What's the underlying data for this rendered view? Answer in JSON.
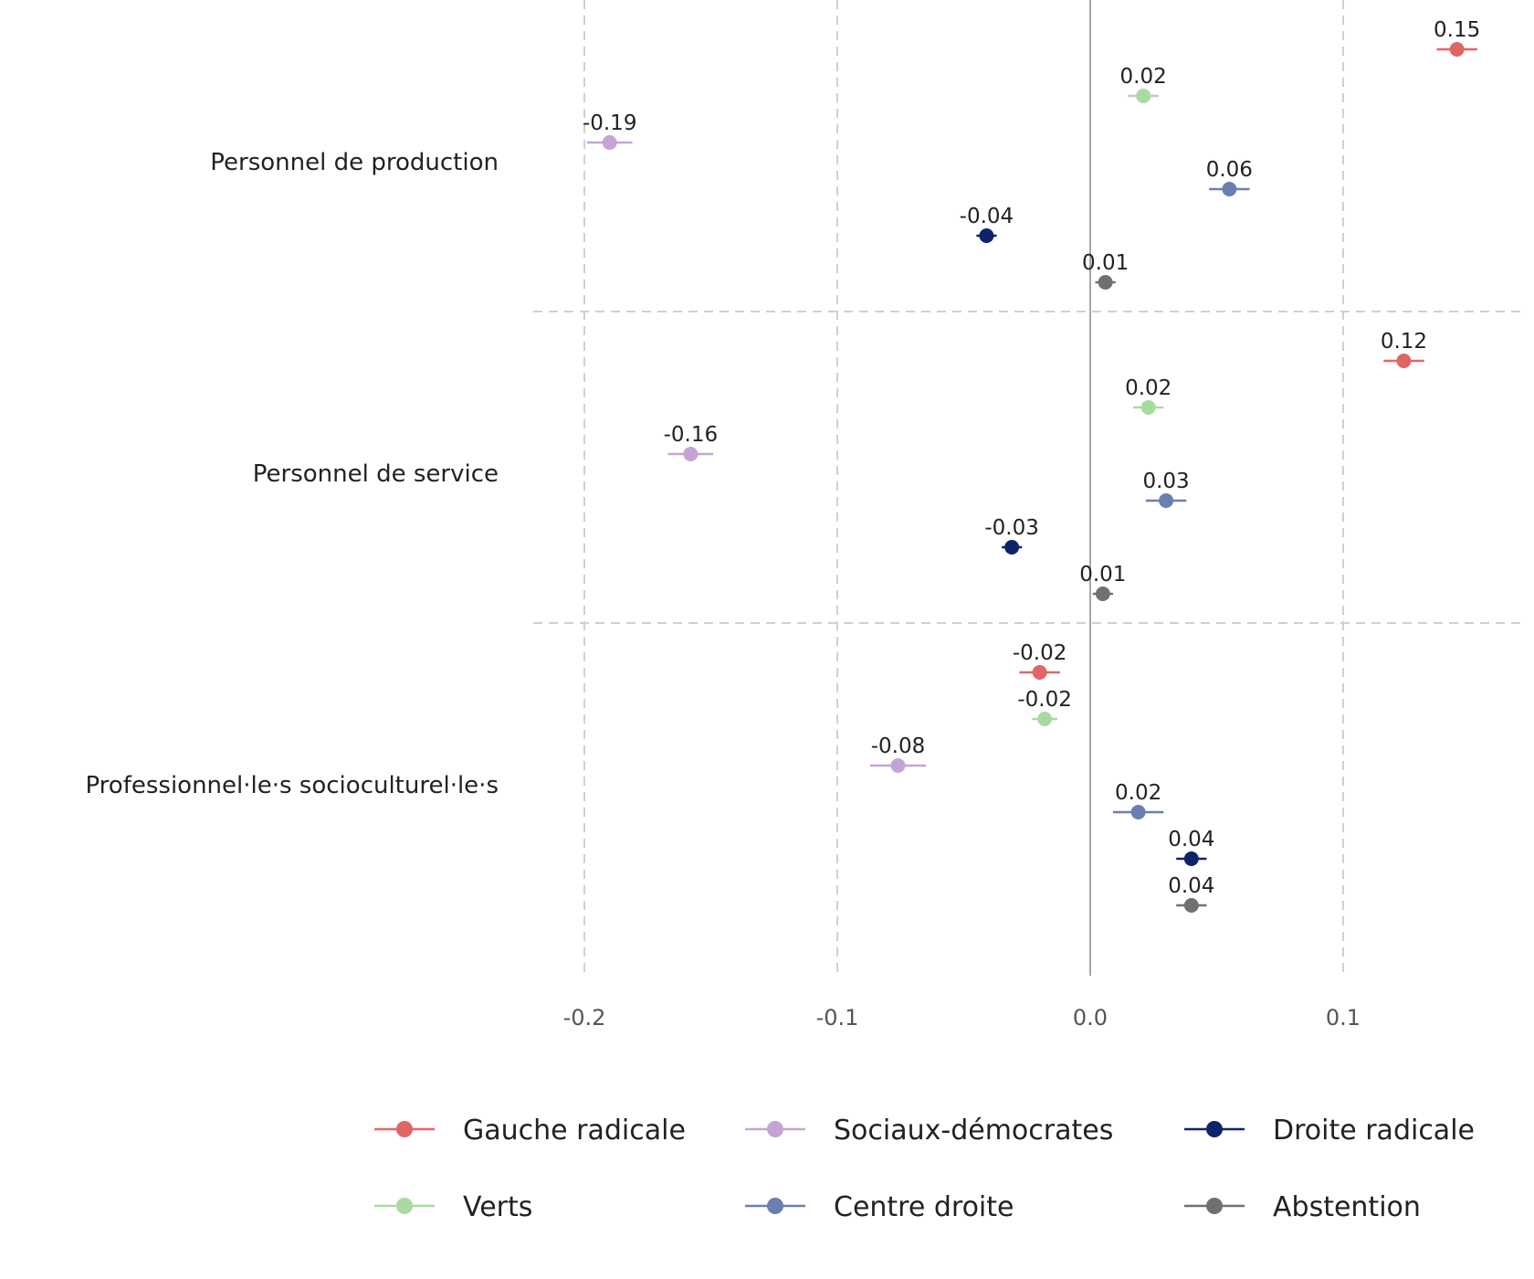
{
  "chart_data": {
    "type": "scatter",
    "orientation": "horizontal-dot-with-error-bars",
    "categories": [
      "Personnel de production",
      "Personnel de service",
      "Professionnel·le·s socioculturel·le·s"
    ],
    "xlim": [
      -0.22,
      0.17
    ],
    "xticks": [
      -0.2,
      -0.1,
      0.0,
      0.1
    ],
    "xtick_labels": [
      "-0.2",
      "-0.1",
      "0.0",
      "0.1"
    ],
    "grid": true,
    "legend_position": "bottom",
    "series": [
      {
        "name": "Gauche radicale",
        "color": "#e06666",
        "values": [
          0.145,
          0.124,
          -0.02
        ],
        "errors": [
          0.008,
          0.008,
          0.008
        ],
        "labels": [
          "0.15",
          "0.12",
          "-0.02"
        ]
      },
      {
        "name": "Verts",
        "color": "#a8dba0",
        "values": [
          0.021,
          0.023,
          -0.018
        ],
        "errors": [
          0.006,
          0.006,
          0.005
        ],
        "labels": [
          "0.02",
          "0.02",
          "-0.02"
        ]
      },
      {
        "name": "Sociaux-démocrates",
        "color": "#c4a4d4",
        "values": [
          -0.19,
          -0.158,
          -0.076
        ],
        "errors": [
          0.009,
          0.009,
          0.011
        ],
        "labels": [
          "-0.19",
          "-0.16",
          "-0.08"
        ]
      },
      {
        "name": "Centre droite",
        "color": "#6b7fb0",
        "values": [
          0.055,
          0.03,
          0.019
        ],
        "errors": [
          0.008,
          0.008,
          0.01
        ],
        "labels": [
          "0.06",
          "0.03",
          "0.02"
        ]
      },
      {
        "name": "Droite radicale",
        "color": "#0d2468",
        "values": [
          -0.041,
          -0.031,
          0.04
        ],
        "errors": [
          0.004,
          0.004,
          0.006
        ],
        "labels": [
          "-0.04",
          "-0.03",
          "0.04"
        ]
      },
      {
        "name": "Abstention",
        "color": "#707070",
        "values": [
          0.006,
          0.005,
          0.04
        ],
        "errors": [
          0.004,
          0.004,
          0.006
        ],
        "labels": [
          "0.01",
          "0.01",
          "0.04"
        ]
      }
    ],
    "legend_order": [
      "Gauche radicale",
      "Sociaux-démocrates",
      "Droite radicale",
      "Verts",
      "Centre droite",
      "Abstention"
    ]
  }
}
